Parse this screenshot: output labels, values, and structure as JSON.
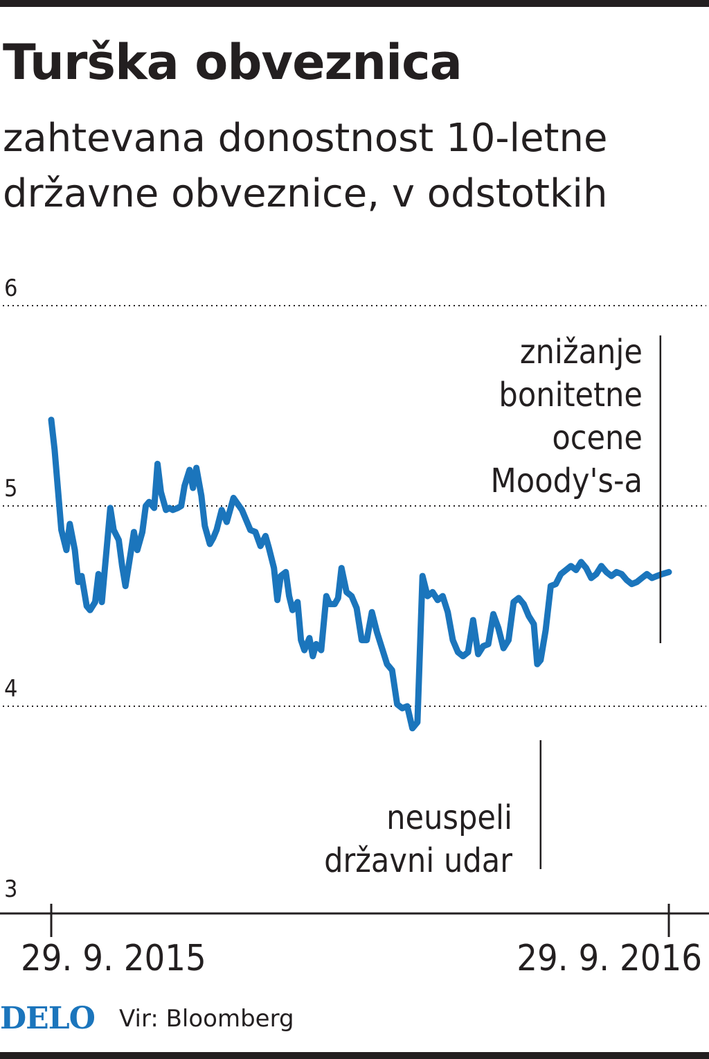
{
  "header": {
    "title": "Turška obveznica",
    "subtitle": "zahtevana donostnost 10-letne\ndržavne obveznice, v odstotkih"
  },
  "footer": {
    "logo": "DELO",
    "source": "Vir: Bloomberg"
  },
  "colors": {
    "line": "#1b75bc",
    "text": "#231f20",
    "grid": "#231f20"
  },
  "chart_data": {
    "type": "line",
    "title": "Turška obveznica",
    "subtitle": "zahtevana donostnost 10-letne državne obveznice, v odstotkih",
    "xlabel": "",
    "ylabel": "",
    "ylim": [
      3,
      6
    ],
    "yticks": [
      3,
      4,
      5,
      6
    ],
    "ytick_labels": [
      "3",
      "4",
      "5",
      "6"
    ],
    "grid": "dotted horizontal at 4, 5, 6",
    "x_range": [
      "2015-09-29",
      "2016-09-29"
    ],
    "xtick_labels": [
      "29. 9. 2015",
      "29. 9. 2016"
    ],
    "series": [
      {
        "x": [
          "2015-09-29",
          "2015-10-01",
          "2015-10-05",
          "2015-10-08",
          "2015-10-10",
          "2015-10-13",
          "2015-10-15",
          "2015-10-17",
          "2015-10-20",
          "2015-10-22",
          "2015-10-25",
          "2015-10-27",
          "2015-10-29",
          "2015-11-01",
          "2015-11-03",
          "2015-11-05",
          "2015-11-08",
          "2015-11-10",
          "2015-11-12",
          "2015-11-15",
          "2015-11-17",
          "2015-11-19",
          "2015-11-22",
          "2015-11-24",
          "2015-11-26",
          "2015-11-29",
          "2015-12-01",
          "2015-12-03",
          "2015-12-06",
          "2015-12-08",
          "2015-12-10",
          "2015-12-13",
          "2015-12-15",
          "2015-12-17",
          "2015-12-20",
          "2015-12-22",
          "2015-12-24",
          "2015-12-27",
          "2015-12-29",
          "2016-01-01",
          "2016-01-03",
          "2016-01-05",
          "2016-01-08",
          "2016-01-11",
          "2016-01-15",
          "2016-01-20",
          "2016-01-25",
          "2016-01-28",
          "2016-01-31",
          "2016-02-03",
          "2016-02-05",
          "2016-02-08",
          "2016-02-10",
          "2016-02-12",
          "2016-02-15",
          "2016-02-17",
          "2016-02-19",
          "2016-02-22",
          "2016-02-24",
          "2016-02-26",
          "2016-02-29",
          "2016-03-02",
          "2016-03-04",
          "2016-03-07",
          "2016-03-10",
          "2016-03-12",
          "2016-03-15",
          "2016-03-17",
          "2016-03-19",
          "2016-03-22",
          "2016-03-25",
          "2016-03-28",
          "2016-03-31",
          "2016-04-03",
          "2016-04-06",
          "2016-04-09",
          "2016-04-12",
          "2016-04-15",
          "2016-04-18",
          "2016-04-21",
          "2016-04-24",
          "2016-04-27",
          "2016-04-30",
          "2016-05-03",
          "2016-05-06",
          "2016-05-09",
          "2016-05-12",
          "2016-05-15",
          "2016-05-18",
          "2016-05-21",
          "2016-05-24",
          "2016-05-27",
          "2016-05-30",
          "2016-06-02",
          "2016-06-05",
          "2016-06-08",
          "2016-06-11",
          "2016-06-14",
          "2016-06-17",
          "2016-06-20",
          "2016-06-23",
          "2016-06-26",
          "2016-06-29",
          "2016-07-02",
          "2016-07-05",
          "2016-07-08",
          "2016-07-11",
          "2016-07-13",
          "2016-07-15",
          "2016-07-18",
          "2016-07-21",
          "2016-07-24",
          "2016-07-27",
          "2016-07-30",
          "2016-08-02",
          "2016-08-05",
          "2016-08-08",
          "2016-08-11",
          "2016-08-14",
          "2016-08-17",
          "2016-08-20",
          "2016-08-23",
          "2016-08-26",
          "2016-08-29",
          "2016-09-01",
          "2016-09-04",
          "2016-09-07",
          "2016-09-10",
          "2016-09-13",
          "2016-09-16",
          "2016-09-19",
          "2016-09-22",
          "2016-09-25",
          "2016-09-29"
        ],
        "values": [
          5.43,
          5.28,
          4.88,
          4.78,
          4.91,
          4.78,
          4.62,
          4.65,
          4.5,
          4.48,
          4.52,
          4.66,
          4.52,
          4.8,
          4.99,
          4.88,
          4.83,
          4.7,
          4.6,
          4.76,
          4.87,
          4.78,
          4.87,
          5.0,
          5.02,
          4.99,
          5.21,
          5.07,
          4.98,
          4.99,
          4.98,
          4.99,
          5.0,
          5.1,
          5.18,
          5.09,
          5.19,
          5.05,
          4.9,
          4.81,
          4.84,
          4.88,
          4.98,
          4.92,
          5.04,
          4.98,
          4.88,
          4.87,
          4.8,
          4.85,
          4.79,
          4.69,
          4.53,
          4.65,
          4.67,
          4.55,
          4.48,
          4.52,
          4.33,
          4.28,
          4.34,
          4.25,
          4.31,
          4.28,
          4.55,
          4.51,
          4.51,
          4.54,
          4.69,
          4.57,
          4.55,
          4.49,
          4.33,
          4.33,
          4.47,
          4.37,
          4.29,
          4.21,
          4.18,
          4.01,
          3.99,
          4.0,
          3.89,
          3.92,
          4.65,
          4.55,
          4.57,
          4.53,
          4.55,
          4.47,
          4.33,
          4.27,
          4.25,
          4.27,
          4.43,
          4.26,
          4.3,
          4.31,
          4.46,
          4.39,
          4.29,
          4.33,
          4.52,
          4.54,
          4.51,
          4.45,
          4.41,
          4.21,
          4.23,
          4.38,
          4.6,
          4.61,
          4.66,
          4.68,
          4.7,
          4.68,
          4.72,
          4.69,
          4.64,
          4.66,
          4.7,
          4.67,
          4.65,
          4.67,
          4.66,
          4.63,
          4.61,
          4.62,
          4.64,
          4.66,
          4.64,
          4.65,
          4.66,
          4.67
        ]
      }
    ],
    "annotations": [
      {
        "text": "znižanje\nbonitetne\nocene\nMoody's-a",
        "x": "2016-09-24",
        "lines": [
          "znižanje",
          "bonitetne",
          "ocene",
          "Moody's-a"
        ]
      },
      {
        "text": "neuspeli\ndržavni udar",
        "x": "2016-07-15",
        "lines": [
          "neuspeli",
          "državni udar"
        ]
      }
    ]
  }
}
